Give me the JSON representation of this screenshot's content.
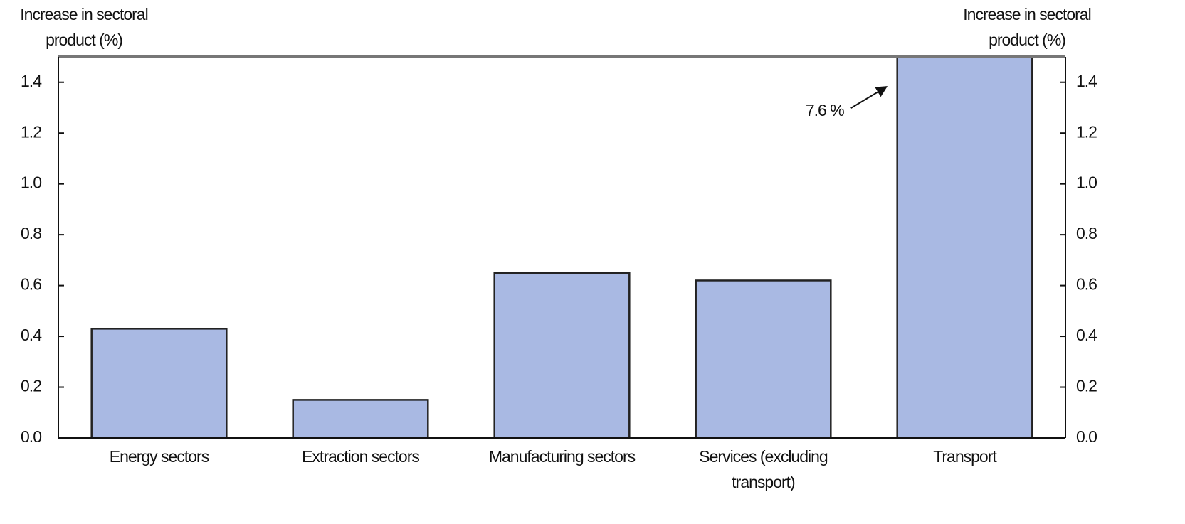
{
  "chart_data": {
    "type": "bar",
    "ylabel": "Increase in sectoral product (%)",
    "y2label": "Increase in sectoral product (%)",
    "categories": [
      "Energy sectors",
      "Extraction sectors",
      "Manufacturing sectors",
      "Services (excluding transport)",
      "Transport"
    ],
    "values": [
      0.43,
      0.15,
      0.65,
      0.62,
      7.6
    ],
    "value_labels": [
      null,
      null,
      null,
      null,
      "7.6 %"
    ],
    "color": "#a9b9e3",
    "ylim": [
      0,
      1.5
    ],
    "yticks": [
      {
        "value": 0,
        "label": "0.0"
      },
      0.2,
      0.4,
      0.6,
      0.8,
      {
        "value": 1,
        "label": "1.0"
      },
      1.2,
      1.4
    ],
    "y2lim": [
      0,
      1.5
    ],
    "y2ticks": [
      {
        "value": 0,
        "label": "0.0"
      },
      0.2,
      0.4,
      0.6,
      0.8,
      {
        "value": 1,
        "label": "1.0"
      },
      1.2,
      1.4
    ],
    "grid": false
  }
}
